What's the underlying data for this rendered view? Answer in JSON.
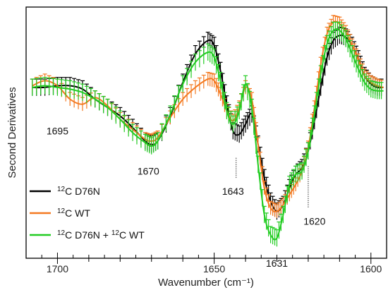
{
  "chart_data": {
    "type": "line",
    "title": "",
    "xlabel": "Wavenumber (cm⁻¹)",
    "ylabel": "Second Derivatives",
    "x_reversed": true,
    "xlim": [
      1710,
      1595
    ],
    "ylim": [
      -1.0,
      0.5
    ],
    "x_ticks": [
      1700,
      1650,
      1600
    ],
    "y_ticks_shown": false,
    "grid": false,
    "legend_position": "bottom-left",
    "series": [
      {
        "name": "¹²C D76N",
        "legend_iso": "12",
        "legend_rest": "C D76N",
        "color": "#000000",
        "x": [
          1708,
          1704,
          1700,
          1696,
          1692,
          1688,
          1684,
          1680,
          1676,
          1672,
          1670,
          1668,
          1664,
          1660,
          1656,
          1652,
          1650,
          1648,
          1646,
          1644,
          1642,
          1640,
          1638,
          1636,
          1634,
          1632,
          1630,
          1628,
          1626,
          1624,
          1622,
          1620,
          1618,
          1616,
          1614,
          1612,
          1610,
          1608,
          1606,
          1604,
          1602,
          1600,
          1598,
          1596
        ],
        "y": [
          0.02,
          0.02,
          0.03,
          0.03,
          0.01,
          -0.05,
          -0.1,
          -0.15,
          -0.22,
          -0.3,
          -0.32,
          -0.3,
          -0.15,
          0.05,
          0.22,
          0.3,
          0.27,
          0.12,
          -0.08,
          -0.24,
          -0.26,
          -0.2,
          -0.14,
          -0.32,
          -0.52,
          -0.66,
          -0.72,
          -0.68,
          -0.58,
          -0.5,
          -0.46,
          -0.36,
          -0.18,
          0.02,
          0.2,
          0.3,
          0.33,
          0.32,
          0.27,
          0.19,
          0.09,
          0.04,
          0.02,
          0.02
        ],
        "error": 0.05
      },
      {
        "name": "¹²C WT",
        "legend_iso": "12",
        "legend_rest": "C WT",
        "color": "#f47920",
        "x": [
          1708,
          1704,
          1700,
          1696,
          1692,
          1688,
          1684,
          1680,
          1676,
          1672,
          1670,
          1668,
          1664,
          1660,
          1656,
          1652,
          1650,
          1648,
          1646,
          1644,
          1642,
          1640,
          1638,
          1636,
          1634,
          1632,
          1630,
          1628,
          1626,
          1624,
          1622,
          1620,
          1618,
          1616,
          1614,
          1612,
          1610,
          1608,
          1606,
          1604,
          1602,
          1600,
          1598,
          1596
        ],
        "y": [
          0.03,
          0.06,
          0.03,
          -0.05,
          -0.08,
          -0.04,
          -0.09,
          -0.17,
          -0.23,
          -0.29,
          -0.3,
          -0.28,
          -0.16,
          -0.05,
          0.02,
          0.07,
          0.06,
          -0.02,
          -0.12,
          -0.18,
          -0.1,
          0.02,
          -0.05,
          -0.32,
          -0.58,
          -0.7,
          -0.72,
          -0.68,
          -0.62,
          -0.56,
          -0.48,
          -0.34,
          -0.1,
          0.16,
          0.34,
          0.41,
          0.4,
          0.35,
          0.27,
          0.18,
          0.09,
          0.05,
          0.03,
          0.02
        ],
        "error": 0.04
      },
      {
        "name": "¹²C D76N + ¹²C WT",
        "legend_iso": "12",
        "legend_rest": "C D76N + ",
        "legend_iso2": "12",
        "legend_rest2": "C WT",
        "color": "#22cc22",
        "x": [
          1708,
          1704,
          1700,
          1696,
          1692,
          1688,
          1684,
          1680,
          1676,
          1672,
          1670,
          1668,
          1664,
          1660,
          1656,
          1652,
          1650,
          1648,
          1646,
          1644,
          1642,
          1640,
          1638,
          1636,
          1634,
          1632,
          1630,
          1628,
          1626,
          1624,
          1622,
          1620,
          1618,
          1616,
          1614,
          1612,
          1610,
          1608,
          1606,
          1604,
          1602,
          1600,
          1598,
          1596
        ],
        "y": [
          0.02,
          0.03,
          0.02,
          0.01,
          -0.01,
          -0.05,
          -0.1,
          -0.17,
          -0.25,
          -0.31,
          -0.33,
          -0.3,
          -0.14,
          0.04,
          0.17,
          0.23,
          0.2,
          0.06,
          -0.12,
          -0.2,
          -0.12,
          0.04,
          -0.1,
          -0.44,
          -0.74,
          -0.86,
          -0.88,
          -0.74,
          -0.56,
          -0.5,
          -0.48,
          -0.36,
          -0.14,
          0.1,
          0.28,
          0.36,
          0.36,
          0.31,
          0.22,
          0.13,
          0.05,
          0.01,
          0.0,
          0.0
        ],
        "error": 0.05
      }
    ],
    "annotations": [
      {
        "text": "1695",
        "x": 1700,
        "y": -0.26
      },
      {
        "text": "1670",
        "x": 1671,
        "y": -0.5
      },
      {
        "text": "1643",
        "x": 1644,
        "y": -0.62,
        "marker_x": 1643,
        "marker_y_top": -0.4,
        "marker_y_bottom": -0.52
      },
      {
        "text": "1631",
        "x": 1630,
        "y": -1.05
      },
      {
        "text": "1620",
        "x": 1618,
        "y": -0.8,
        "marker_x": 1620,
        "marker_y_top": -0.45,
        "marker_y_bottom": -0.7
      }
    ]
  }
}
